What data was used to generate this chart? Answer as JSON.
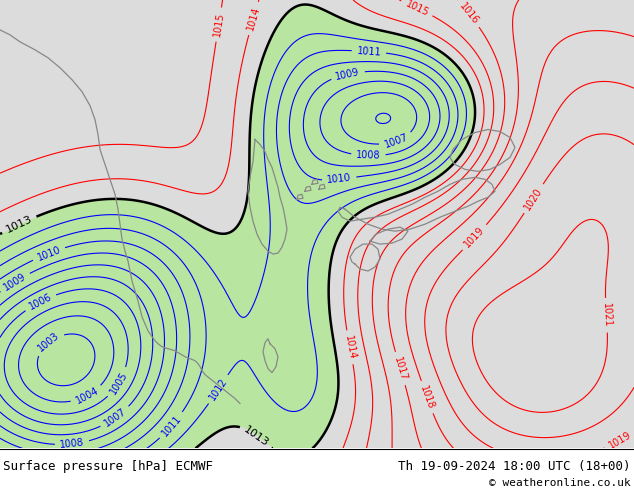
{
  "title_left": "Surface pressure [hPa] ECMWF",
  "title_right": "Th 19-09-2024 18:00 UTC (18+00)",
  "copyright": "© weatheronline.co.uk",
  "green_color": "#b8e6a0",
  "gray_color": "#dcdcdc",
  "footer_bg": "#ffffff",
  "label_fontsize": 7,
  "footer_fontsize": 9
}
